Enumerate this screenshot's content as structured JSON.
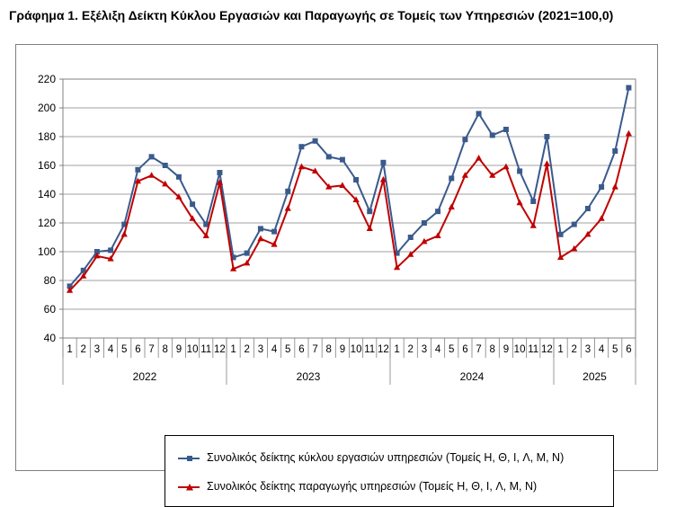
{
  "title": "Γράφημα 1. Εξέλιξη Δείκτη Κύκλου Εργασιών και Παραγωγής σε Τομείς των Υπηρεσιών (2021=100,0)",
  "chart_data": {
    "type": "line",
    "title": "Γράφημα 1. Εξέλιξη Δείκτη Κύκλου Εργασιών και Παραγωγής σε Τομείς των Υπηρεσιών (2021=100,0)",
    "xlabel": "",
    "ylabel": "",
    "ylim": [
      40,
      220
    ],
    "yticks": [
      40,
      60,
      80,
      100,
      120,
      140,
      160,
      180,
      200,
      220
    ],
    "grid": "horizontal",
    "legend_position": "bottom",
    "x_months": [
      "1",
      "2",
      "3",
      "4",
      "5",
      "6",
      "7",
      "8",
      "9",
      "10",
      "11",
      "12",
      "1",
      "2",
      "3",
      "4",
      "5",
      "6",
      "7",
      "8",
      "9",
      "10",
      "11",
      "12",
      "1",
      "2",
      "3",
      "4",
      "5",
      "6",
      "7",
      "8",
      "9",
      "10",
      "11",
      "12",
      "1",
      "2",
      "3",
      "4",
      "5",
      "6"
    ],
    "years": [
      {
        "label": "2022",
        "months": 12
      },
      {
        "label": "2023",
        "months": 12
      },
      {
        "label": "2024",
        "months": 12
      },
      {
        "label": "2025",
        "months": 6
      }
    ],
    "series": [
      {
        "name": "Συνολικός δείκτης κύκλου εργασιών υπηρεσιών (Τομείς H, Θ, I, Λ, M, N)",
        "color": "#3A5A8C",
        "marker": "square",
        "values": [
          76,
          87,
          100,
          101,
          119,
          157,
          166,
          160,
          152,
          133,
          119,
          155,
          96,
          99,
          116,
          114,
          142,
          173,
          177,
          166,
          164,
          150,
          128,
          162,
          99,
          110,
          120,
          128,
          151,
          178,
          196,
          181,
          185,
          156,
          135,
          180,
          112,
          119,
          130,
          145,
          170,
          214
        ]
      },
      {
        "name": "Συνολικός δείκτης παραγωγής υπηρεσιών (Τομείς H, Θ, I, Λ, M, N)",
        "color": "#C00000",
        "marker": "triangle",
        "values": [
          73,
          83,
          97,
          95,
          112,
          149,
          153,
          147,
          138,
          123,
          111,
          148,
          88,
          92,
          109,
          105,
          130,
          159,
          156,
          145,
          146,
          136,
          116,
          150,
          89,
          98,
          107,
          111,
          131,
          153,
          165,
          153,
          159,
          134,
          118,
          161,
          96,
          102,
          112,
          123,
          145,
          182
        ]
      }
    ]
  }
}
